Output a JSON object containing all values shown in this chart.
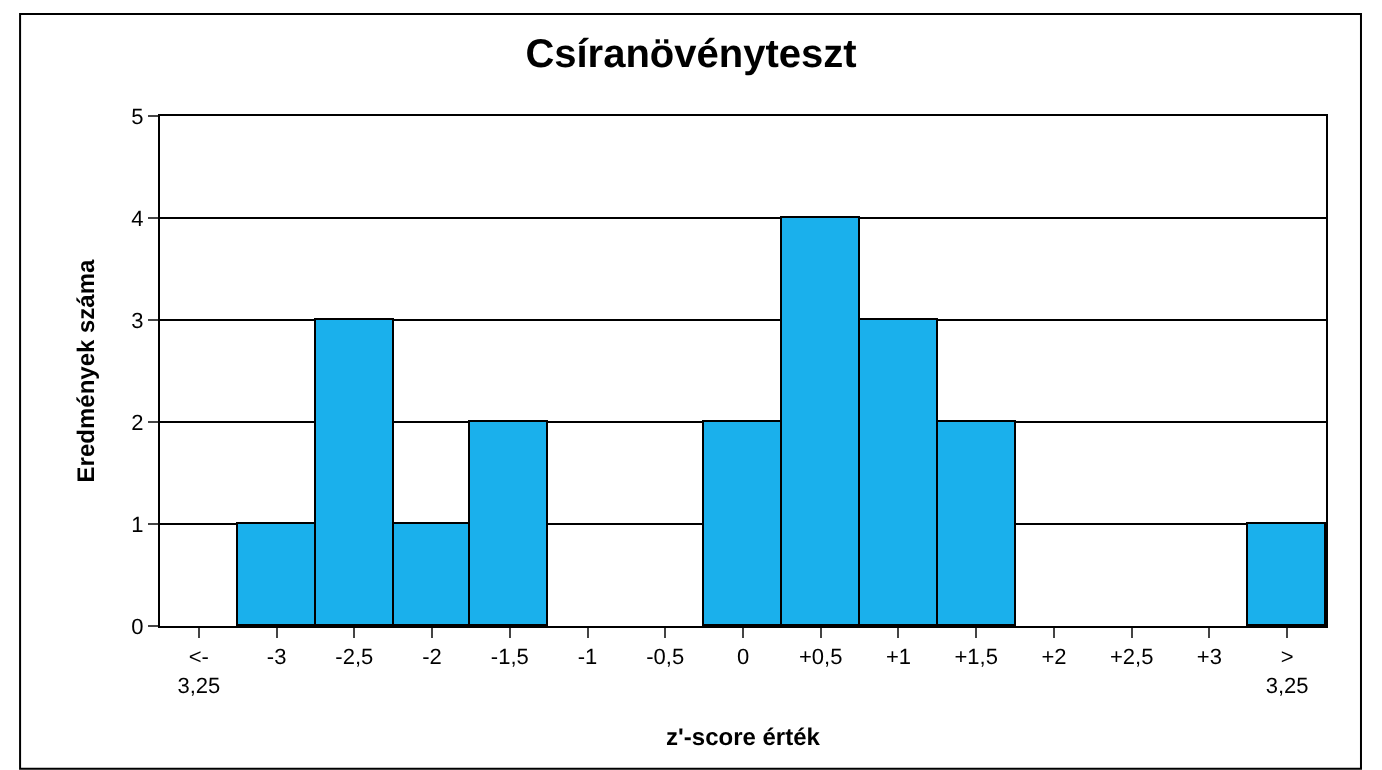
{
  "chart_data": {
    "type": "bar",
    "title": "Csíranövényteszt",
    "xlabel": "z'-score érték",
    "ylabel": "Eredmények száma",
    "categories": [
      "<-\n3,25",
      "-3",
      "-2,5",
      "-2",
      "-1,5",
      "-1",
      "-0,5",
      "0",
      "+0,5",
      "+1",
      "+1,5",
      "+2",
      "+2,5",
      "+3",
      ">\n3,25"
    ],
    "values": [
      0,
      1,
      3,
      1,
      2,
      0,
      0,
      2,
      4,
      3,
      2,
      0,
      0,
      0,
      1
    ],
    "color": "#1ab0ec",
    "ylim": [
      0,
      5
    ],
    "yticks": [
      0,
      1,
      2,
      3,
      4,
      5
    ],
    "grid": "y"
  }
}
